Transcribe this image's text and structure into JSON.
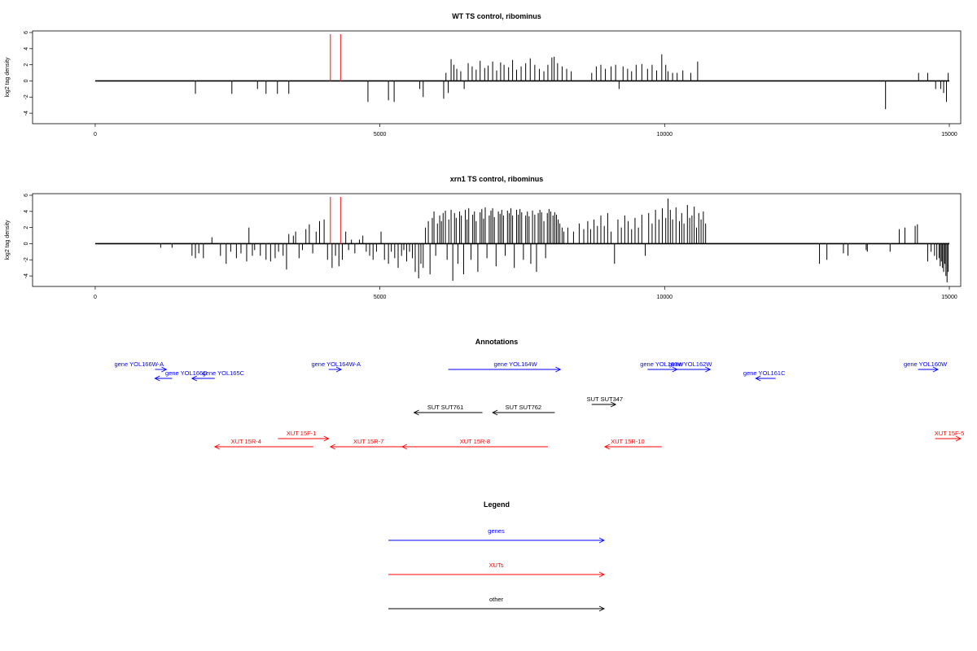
{
  "chart_data": [
    {
      "type": "bar",
      "title": "WT TS control, ribominus",
      "xlabel": "",
      "ylabel": "log2 tag density",
      "xlim": [
        -1100,
        15200
      ],
      "ylim": [
        -5.3,
        6.2
      ],
      "xticks": [
        0,
        5000,
        10000,
        15000
      ],
      "yticks": [
        -4,
        -2,
        0,
        2,
        4,
        6
      ],
      "highlight_lines": [
        {
          "x": 4130,
          "color": "#ff3333"
        },
        {
          "x": 4310,
          "color": "#ff3333"
        }
      ],
      "series": [
        {
          "x": [
            1760,
            2400,
            2850,
            3000,
            3200,
            3400,
            4790,
            5150,
            5250,
            5700,
            5760,
            6120,
            6160,
            6200,
            6250,
            6300,
            6350,
            6420,
            6480,
            6550,
            6620,
            6690,
            6760,
            6840,
            6900,
            6980,
            7050,
            7120,
            7180,
            7260,
            7330,
            7400,
            7480,
            7560,
            7640,
            7720,
            7800,
            7880,
            7950,
            8020,
            8060,
            8120,
            8200,
            8280,
            8360,
            8720,
            8800,
            8880,
            8960,
            9060,
            9140,
            9200,
            9270,
            9350,
            9420,
            9500,
            9600,
            9700,
            9780,
            9860,
            9950,
            10020,
            10060,
            10140,
            10220,
            10320,
            10460,
            10580,
            13880,
            14460,
            14620,
            14760,
            14850,
            14900,
            14950,
            14980
          ],
          "values": [
            -1.6,
            -1.6,
            -1.0,
            -1.6,
            -1.6,
            -1.6,
            -2.6,
            -2.4,
            -2.6,
            -1.0,
            -2.0,
            -2.2,
            1.0,
            -1.5,
            2.7,
            2.0,
            1.5,
            1.2,
            -1.0,
            2.2,
            1.8,
            1.4,
            2.5,
            1.6,
            1.9,
            2.4,
            1.3,
            2.3,
            2.0,
            1.7,
            2.6,
            1.4,
            1.8,
            2.2,
            2.8,
            2.0,
            1.5,
            1.2,
            2.0,
            2.9,
            3.0,
            2.2,
            1.8,
            1.5,
            1.2,
            1.0,
            1.8,
            2.0,
            1.5,
            1.8,
            2.0,
            -1.0,
            1.8,
            1.5,
            1.2,
            2.0,
            2.1,
            1.5,
            2.0,
            1.3,
            3.3,
            2.0,
            1.2,
            1.0,
            1.0,
            1.3,
            1.0,
            2.4,
            -3.5,
            1.0,
            1.0,
            -1.0,
            -1.0,
            -1.5,
            -2.6,
            1.0
          ]
        }
      ]
    },
    {
      "type": "bar",
      "title": "xrn1 TS control, ribominus",
      "xlabel": "",
      "ylabel": "log2 tag density",
      "xlim": [
        -1100,
        15200
      ],
      "ylim": [
        -5.3,
        6.2
      ],
      "xticks": [
        0,
        5000,
        10000,
        15000
      ],
      "yticks": [
        -4,
        -2,
        0,
        2,
        4,
        6
      ],
      "highlight_lines": [
        {
          "x": 4130,
          "color": "#ff3333"
        },
        {
          "x": 4310,
          "color": "#ff3333"
        }
      ],
      "series": [
        {
          "x": [
            1150,
            1350,
            1700,
            1760,
            1820,
            1900,
            2050,
            2200,
            2300,
            2380,
            2480,
            2560,
            2660,
            2700,
            2760,
            2800,
            2900,
            3000,
            3080,
            3160,
            3220,
            3300,
            3360,
            3400,
            3480,
            3520,
            3580,
            3640,
            3700,
            3760,
            3820,
            3880,
            3940,
            4020,
            4080,
            4160,
            4220,
            4280,
            4340,
            4400,
            4450,
            4500,
            4560,
            4640,
            4700,
            4760,
            4820,
            4880,
            4940,
            5020,
            5080,
            5150,
            5200,
            5260,
            5320,
            5380,
            5420,
            5470,
            5520,
            5570,
            5620,
            5680,
            5720,
            5760,
            5800,
            5850,
            5880,
            5920,
            5950,
            5980,
            6010,
            6050,
            6080,
            6110,
            6150,
            6180,
            6210,
            6250,
            6280,
            6310,
            6340,
            6370,
            6400,
            6430,
            6470,
            6500,
            6530,
            6560,
            6600,
            6630,
            6660,
            6690,
            6720,
            6760,
            6790,
            6820,
            6850,
            6880,
            6920,
            6950,
            6980,
            7010,
            7040,
            7080,
            7110,
            7140,
            7170,
            7200,
            7240,
            7270,
            7300,
            7330,
            7360,
            7400,
            7430,
            7460,
            7490,
            7520,
            7560,
            7590,
            7620,
            7650,
            7680,
            7720,
            7750,
            7780,
            7810,
            7840,
            7880,
            7910,
            7940,
            7970,
            8000,
            8040,
            8070,
            8100,
            8130,
            8160,
            8200,
            8230,
            8300,
            8400,
            8500,
            8580,
            8650,
            8700,
            8760,
            8820,
            8880,
            8940,
            9000,
            9060,
            9120,
            9180,
            9240,
            9300,
            9360,
            9420,
            9480,
            9540,
            9600,
            9660,
            9720,
            9780,
            9840,
            9900,
            9960,
            10020,
            10060,
            10100,
            10140,
            10200,
            10260,
            10300,
            10340,
            10400,
            10440,
            10480,
            10520,
            10560,
            10600,
            10640,
            10680,
            10720,
            12720,
            12850,
            13140,
            13220,
            13540,
            13560,
            13960,
            14120,
            14220,
            14400,
            14440,
            14620,
            14680,
            14740,
            14780,
            14820,
            14840,
            14860,
            14880,
            14900,
            14920,
            14940,
            14960,
            14980
          ],
          "values": [
            -0.5,
            -0.5,
            -1.5,
            -1.8,
            -1.2,
            -1.8,
            0.8,
            -1.5,
            -2.5,
            -1.0,
            -1.8,
            -1.2,
            -2.2,
            2.0,
            -1.5,
            -0.8,
            -1.5,
            -2.0,
            -2.2,
            -1.8,
            -1.0,
            -1.5,
            -3.2,
            1.2,
            1.0,
            1.5,
            -1.8,
            -0.8,
            1.8,
            2.4,
            -1.2,
            1.5,
            2.8,
            3.0,
            -2.0,
            -3.0,
            -1.5,
            -2.8,
            -2.0,
            1.5,
            -0.8,
            0.5,
            -1.2,
            0.5,
            1.0,
            -1.0,
            -1.5,
            -2.0,
            -1.0,
            1.5,
            -2.0,
            -2.5,
            -1.0,
            -1.8,
            -3.0,
            -1.5,
            -0.8,
            -2.2,
            -1.0,
            -1.8,
            -3.5,
            -4.3,
            -2.5,
            -3.0,
            2.0,
            2.8,
            -3.8,
            3.2,
            4.0,
            -1.5,
            2.5,
            3.5,
            2.8,
            3.8,
            4.1,
            -2.0,
            3.0,
            4.2,
            -4.6,
            3.8,
            3.2,
            -2.5,
            4.0,
            3.5,
            -3.8,
            4.2,
            3.0,
            4.4,
            -2.0,
            3.6,
            4.0,
            2.8,
            -3.5,
            3.9,
            4.3,
            3.1,
            4.5,
            -1.8,
            3.5,
            4.1,
            4.4,
            3.3,
            -2.8,
            4.0,
            3.7,
            4.2,
            3.5,
            -1.5,
            4.1,
            3.8,
            4.4,
            3.5,
            -3.0,
            4.2,
            3.6,
            4.3,
            3.9,
            -2.0,
            3.5,
            4.0,
            3.4,
            -2.5,
            4.1,
            3.6,
            -3.5,
            3.8,
            4.2,
            3.9,
            2.8,
            -1.8,
            3.8,
            4.3,
            4.0,
            3.5,
            3.9,
            3.6,
            3.0,
            2.5,
            2.0,
            1.5,
            2.0,
            1.5,
            2.5,
            1.8,
            2.8,
            1.8,
            3.0,
            2.2,
            3.5,
            2.2,
            3.8,
            1.5,
            -2.5,
            3.0,
            2.0,
            3.5,
            2.8,
            1.8,
            3.2,
            2.0,
            3.6,
            -1.5,
            3.8,
            2.5,
            4.2,
            3.0,
            4.4,
            3.2,
            5.6,
            4.2,
            3.0,
            4.5,
            2.8,
            3.8,
            2.5,
            4.8,
            3.2,
            3.5,
            4.6,
            2.0,
            3.8,
            3.0,
            4.0,
            2.5,
            -2.5,
            -2.0,
            -1.2,
            -1.5,
            -0.8,
            -1.0,
            -1.0,
            1.8,
            2.0,
            2.2,
            2.4,
            -2.2,
            -1.0,
            -1.5,
            -2.0,
            -1.8,
            -2.8,
            -2.2,
            -3.0,
            -3.5,
            -2.5,
            -4.0,
            -4.8,
            -3.5
          ]
        }
      ]
    },
    {
      "type": "annotation-track",
      "title": "Annotations",
      "xlim": [
        -1100,
        15200
      ],
      "features": [
        {
          "label": "gene YOL166W-A",
          "start": 770,
          "end": 770,
          "arrow_start": 1050,
          "arrow_end": 1250,
          "strand": "+",
          "color": "#0000ff",
          "row": 1
        },
        {
          "label": "gene YOL166C",
          "start": 1600,
          "end": 1600,
          "arrow_start": 1350,
          "arrow_end": 1050,
          "strand": "-",
          "color": "#0000ff",
          "row": 2
        },
        {
          "label": "gene YOL165C",
          "start": 2250,
          "end": 2250,
          "arrow_start": 2100,
          "arrow_end": 1700,
          "strand": "-",
          "color": "#0000ff",
          "row": 2
        },
        {
          "label": "gene YOL164W-A",
          "start": 4230,
          "end": 4230,
          "arrow_start": 4100,
          "arrow_end": 4320,
          "strand": "+",
          "color": "#0000ff",
          "row": 1
        },
        {
          "label": "gene YOL164W",
          "start": 7380,
          "end": 7380,
          "arrow_start": 6200,
          "arrow_end": 8170,
          "strand": "+",
          "color": "#0000ff",
          "row": 1
        },
        {
          "label": "gene YOL163W",
          "start": 9950,
          "end": 9950,
          "arrow_start": 9700,
          "arrow_end": 10220,
          "strand": "+",
          "color": "#0000ff",
          "row": 1
        },
        {
          "label": "gene YOL162W",
          "start": 10450,
          "end": 10450,
          "arrow_start": 10100,
          "arrow_end": 10800,
          "strand": "+",
          "color": "#0000ff",
          "row": 1
        },
        {
          "label": "gene YOL161C",
          "start": 11750,
          "end": 11750,
          "arrow_start": 11950,
          "arrow_end": 11600,
          "strand": "-",
          "color": "#0000ff",
          "row": 2
        },
        {
          "label": "gene YOL160W",
          "start": 14580,
          "end": 14580,
          "arrow_start": 14450,
          "arrow_end": 14800,
          "strand": "+",
          "color": "#0000ff",
          "row": 1
        },
        {
          "label": "SUT SUT761",
          "start": 6150,
          "end": 6150,
          "arrow_start": 6800,
          "arrow_end": 5600,
          "strand": "-",
          "color": "#000000",
          "row": 4
        },
        {
          "label": "SUT SUT762",
          "start": 7520,
          "end": 7520,
          "arrow_start": 8070,
          "arrow_end": 6980,
          "strand": "-",
          "color": "#000000",
          "row": 4
        },
        {
          "label": "SUT SUT347",
          "start": 8950,
          "end": 8950,
          "arrow_start": 8720,
          "arrow_end": 9140,
          "strand": "+",
          "color": "#000000",
          "row": 3
        },
        {
          "label": "XUT 15F-1",
          "start": 3620,
          "end": 3620,
          "arrow_start": 3210,
          "arrow_end": 4100,
          "strand": "+",
          "color": "#ff0000",
          "row": 5
        },
        {
          "label": "XUT 15R-4",
          "start": 2650,
          "end": 2650,
          "arrow_start": 3830,
          "arrow_end": 2100,
          "strand": "-",
          "color": "#ff0000",
          "row": 6
        },
        {
          "label": "XUT 15R-7",
          "start": 4800,
          "end": 4800,
          "arrow_start": 5480,
          "arrow_end": 4130,
          "strand": "-",
          "color": "#ff0000",
          "row": 6
        },
        {
          "label": "XUT 15R-8",
          "start": 6670,
          "end": 6670,
          "arrow_start": 7950,
          "arrow_end": 5390,
          "strand": "-",
          "color": "#ff0000",
          "row": 6
        },
        {
          "label": "XUT 15R-10",
          "start": 9350,
          "end": 9350,
          "arrow_start": 9950,
          "arrow_end": 8950,
          "strand": "-",
          "color": "#ff0000",
          "row": 6
        },
        {
          "label": "XUT 15F-5",
          "start": 15000,
          "end": 15000,
          "arrow_start": 14750,
          "arrow_end": 15200,
          "strand": "+",
          "color": "#ff0000",
          "row": 5
        }
      ]
    },
    {
      "type": "legend",
      "title": "Legend",
      "entries": [
        {
          "label": "genes",
          "color": "#0000ff"
        },
        {
          "label": "XUTs",
          "color": "#ff0000"
        },
        {
          "label": "other",
          "color": "#000000"
        }
      ]
    }
  ]
}
